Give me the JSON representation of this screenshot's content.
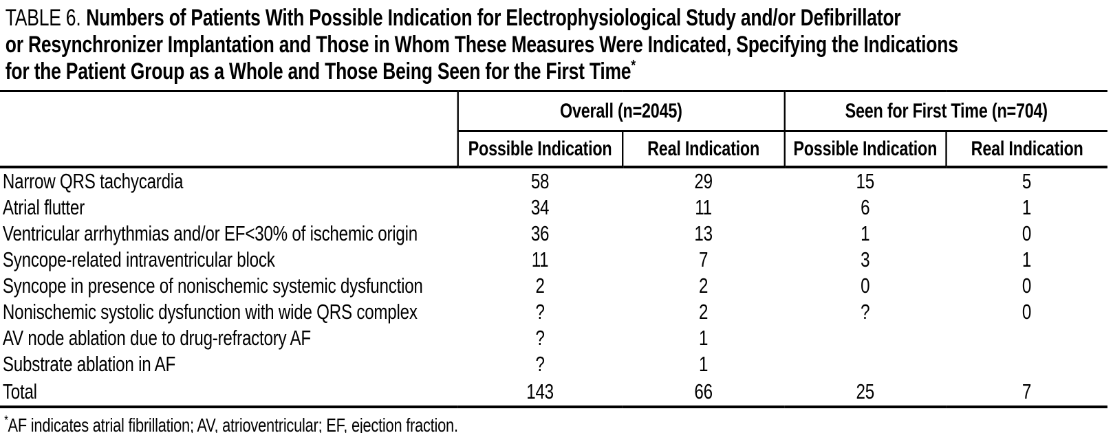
{
  "title": {
    "prefix": "TABLE 6.",
    "line1": "Numbers of Patients With Possible Indication for Electrophysiological Study and/or Defibrillator",
    "line2": "or Resynchronizer Implantation and Those in Whom These Measures Were Indicated, Specifying the Indications",
    "line3": "for the Patient Group as a Whole and Those Being Seen for the First Time",
    "marker": "*"
  },
  "table": {
    "column_groups": [
      {
        "label": "Overall (n=2045)",
        "columns": [
          "Possible Indication",
          "Real Indication"
        ]
      },
      {
        "label": "Seen for First Time (n=704)",
        "columns": [
          "Possible Indication",
          "Real Indication"
        ]
      }
    ],
    "rows": [
      {
        "label": "Narrow QRS tachycardia",
        "values": [
          "58",
          "29",
          "15",
          "5"
        ]
      },
      {
        "label": "Atrial flutter",
        "values": [
          "34",
          "11",
          "6",
          "1"
        ]
      },
      {
        "label": "Ventricular arrhythmias and/or EF<30% of ischemic origin",
        "values": [
          "36",
          "13",
          "1",
          "0"
        ]
      },
      {
        "label": "Syncope-related intraventricular block",
        "values": [
          "11",
          "7",
          "3",
          "1"
        ]
      },
      {
        "label": "Syncope in presence of nonischemic systemic dysfunction",
        "values": [
          "2",
          "2",
          "0",
          "0"
        ]
      },
      {
        "label": "Nonischemic systolic dysfunction with wide QRS complex",
        "values": [
          "?",
          "2",
          "?",
          "0"
        ]
      },
      {
        "label": "AV node ablation due to drug-refractory AF",
        "values": [
          "?",
          "1",
          "",
          ""
        ]
      },
      {
        "label": "Substrate ablation in AF",
        "values": [
          "?",
          "1",
          "",
          ""
        ]
      },
      {
        "label": "Total",
        "values": [
          "143",
          "66",
          "25",
          "7"
        ]
      }
    ]
  },
  "footnote": {
    "marker": "*",
    "text": "AF indicates atrial fibrillation; AV, atrioventricular; EF, ejection fraction."
  },
  "colors": {
    "text": "#000000",
    "background": "#ffffff",
    "rule": "#000000"
  }
}
